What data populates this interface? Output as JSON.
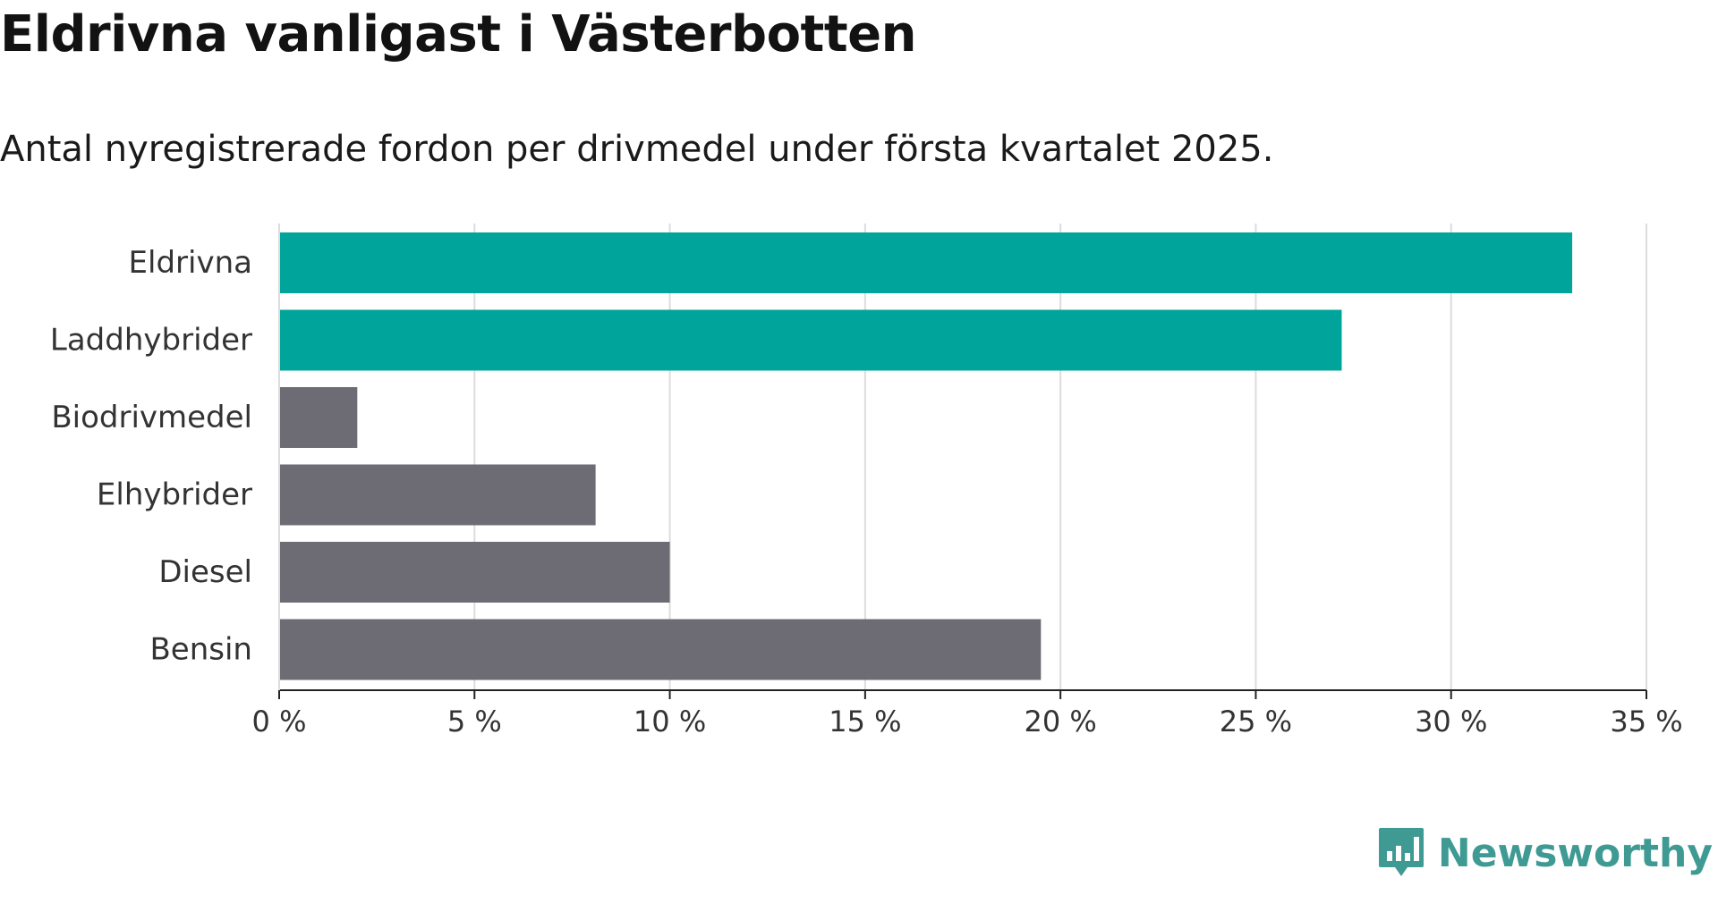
{
  "title": "Eldrivna vanligast i Västerbotten",
  "subtitle": "Antal nyregistrerade fordon per drivmedel under första kvartalet 2025.",
  "brand": {
    "name": "Newsworthy",
    "color": "#3f9a93",
    "icon": "newsworthy-logo-icon"
  },
  "chart_data": {
    "type": "bar",
    "orientation": "horizontal",
    "categories": [
      "Eldrivna",
      "Laddhybrider",
      "Biodrivmedel",
      "Elhybrider",
      "Diesel",
      "Bensin"
    ],
    "values": [
      33.1,
      27.2,
      2.0,
      8.1,
      10.0,
      19.5
    ],
    "bar_colors": [
      "#00a49a",
      "#00a49a",
      "#6d6c75",
      "#6d6c75",
      "#6d6c75",
      "#6d6c75"
    ],
    "xlim": [
      0,
      35
    ],
    "xticks": [
      0,
      5,
      10,
      15,
      20,
      25,
      30,
      35
    ],
    "xtick_labels": [
      "0 %",
      "5 %",
      "10 %",
      "15 %",
      "20 %",
      "25 %",
      "30 %",
      "35 %"
    ],
    "xlabel": "",
    "ylabel": "",
    "grid": "vertical"
  }
}
